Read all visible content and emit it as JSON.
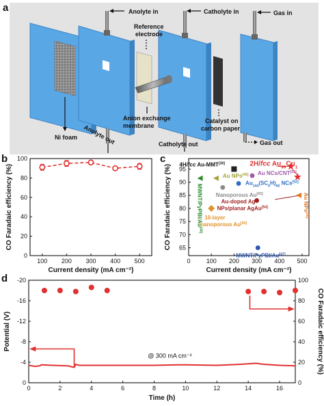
{
  "panel_a": {
    "letter": "a",
    "labels": {
      "anolyte_in": "Anolyte in",
      "catholyte_in": "Catholyte in",
      "gas_in": "Gas in",
      "reference": "Reference",
      "electrode": "electrode",
      "ni_foam": "Ni foam",
      "anolyte_out": "Anolyte out",
      "anion_exchange": "Anion exchange",
      "membrane": "membrane",
      "catalyst_on": "Catalyst on",
      "carbon_paper": "carbon paper",
      "catholyte_out": "Catholyte out",
      "gas_out": "Gas out"
    },
    "colors": {
      "plate": "#5aa7e6",
      "plate_side": "#3c83c4",
      "background": "#e3e3e3",
      "ni_foam": "#8a8a8a",
      "membrane": "#e6e2c8",
      "carbon": "#333333"
    }
  },
  "chart_data": [
    {
      "panel": "b",
      "type": "line",
      "xlabel": "Current density (mA cm⁻²)",
      "ylabel": "CO Faradaic efficiency (%)",
      "x": [
        100,
        200,
        300,
        400,
        500
      ],
      "values": [
        91,
        95,
        96,
        90,
        92
      ],
      "errors": [
        3,
        3,
        2,
        1.5,
        3
      ],
      "xlim": [
        50,
        550
      ],
      "ylim": [
        0,
        100
      ],
      "xticks": [
        "100",
        "200",
        "300",
        "400",
        "500"
      ],
      "yticks": [
        "0",
        "20",
        "40",
        "60",
        "80",
        "100"
      ],
      "color": "#e03030",
      "style": "dashed line with circle markers and error bars"
    },
    {
      "panel": "c",
      "type": "scatter",
      "xlabel": "Current density (mA cm⁻²)",
      "ylabel": "CO Faradaic efficiency (%)",
      "xlim": [
        0,
        530
      ],
      "ylim": [
        62,
        99
      ],
      "xticks": [
        "0",
        "100",
        "200",
        "300",
        "400",
        "500"
      ],
      "yticks": [
        "65",
        "70",
        "75",
        "80",
        "85",
        "90",
        "95"
      ],
      "points": [
        {
          "x": 200,
          "y": 95,
          "marker": "square",
          "color": "#222222",
          "label_parts": [
            "4H/",
            "fcc",
            " Au-MMT",
            "[30]"
          ]
        },
        {
          "x": 450,
          "y": 96,
          "marker": "star",
          "color": "#e03030",
          "label_parts": [
            "2H/",
            "fcc",
            " Au",
            "99",
            "Cu",
            "1"
          ]
        },
        {
          "x": 480,
          "y": 92,
          "marker": "star",
          "color": "#e03030",
          "label_parts": []
        },
        {
          "x": 50,
          "y": 91.5,
          "marker": "triangle-left",
          "color": "#2b8a2b",
          "label_parts": [
            "MWNT/PyPBI/Au",
            "[46]"
          ]
        },
        {
          "x": 120,
          "y": 91.5,
          "marker": "triangle-left",
          "color": "#a3a33a",
          "label_parts": [
            "Au NPs",
            "[45]"
          ]
        },
        {
          "x": 280,
          "y": 92.5,
          "marker": "circle",
          "color": "#a05aa8",
          "label_parts": [
            "Au NCs/CNT",
            "[51]"
          ]
        },
        {
          "x": 220,
          "y": 89.5,
          "marker": "circle",
          "color": "#2b6fc2",
          "label_parts": [
            "Au",
            "144",
            "(SC",
            "6",
            "H)",
            "60",
            " NCs",
            "[52]"
          ]
        },
        {
          "x": 150,
          "y": 88,
          "marker": "circle",
          "color": "#8a8a8a",
          "label_parts": [
            "Nanoporous Au",
            "[55]"
          ]
        },
        {
          "x": 485,
          "y": 85,
          "marker": "triangle-left",
          "color": "#e0782a",
          "label_parts": [
            "Au NPs",
            "[56]"
          ]
        },
        {
          "x": 300,
          "y": 83,
          "marker": "circle",
          "color": "#a02020",
          "label_parts": [
            "Au-doped Ag",
            "NPs/planar AgAu",
            "[54]"
          ]
        },
        {
          "x": 100,
          "y": 80,
          "marker": "diamond",
          "color": "#e0932a",
          "label_parts": [
            "10-layer",
            "nanoporous Au",
            "[50]"
          ]
        },
        {
          "x": 305,
          "y": 65,
          "marker": "circle",
          "color": "#2b55b0",
          "label_parts": [
            "MWNT/PyPBI/Au",
            "[47]"
          ]
        }
      ]
    },
    {
      "panel": "d",
      "type": "line",
      "xlabel": "Time (h)",
      "ylabel": "Potential (V)",
      "y2label": "CO Faradaic efficiency (%)",
      "xlim": [
        0,
        17
      ],
      "ylim": [
        0,
        -20
      ],
      "y2lim": [
        0,
        100
      ],
      "xticks": [
        "0",
        "2",
        "4",
        "6",
        "8",
        "10",
        "12",
        "14",
        "16"
      ],
      "yticks": [
        "0",
        "-4",
        "-8",
        "-12",
        "-16",
        "-20"
      ],
      "y2ticks": [
        "0",
        "20",
        "40",
        "60",
        "80",
        "100"
      ],
      "annotation": "@ 300 mA cm⁻²",
      "potential_series": {
        "x": [
          0,
          0.4,
          0.7,
          0.8,
          1.5,
          2.5,
          2.9,
          3.0,
          3.2,
          4,
          6,
          8,
          9.5,
          10,
          12,
          13.5,
          14.5,
          15,
          16,
          17
        ],
        "y": [
          -3.4,
          -3.2,
          -3.3,
          -3.5,
          -3.4,
          -3.3,
          -3.0,
          -3.6,
          -3.4,
          -3.4,
          -3.4,
          -3.4,
          -3.5,
          -3.5,
          -3.4,
          -3.6,
          -3.8,
          -3.6,
          -3.4,
          -3.3
        ]
      },
      "fe_series": {
        "x": [
          1,
          2,
          3,
          4,
          5,
          14,
          15,
          16,
          17
        ],
        "y": [
          90,
          90,
          89,
          93,
          90,
          89,
          89,
          88,
          90
        ]
      },
      "color": "#e03030"
    }
  ],
  "panel_labels": {
    "b": "b",
    "c": "c",
    "d": "d"
  }
}
